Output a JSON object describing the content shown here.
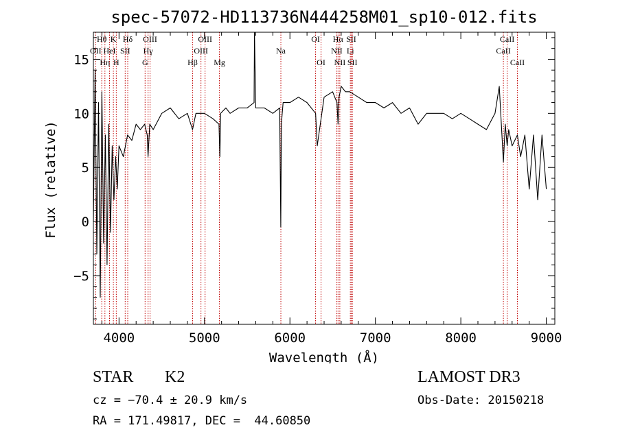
{
  "chart_data": {
    "type": "line",
    "title": "spec-57072-HD113736N444258M01_sp10-012.fits",
    "xlabel": "Wavelength (Å)",
    "ylabel": "Flux (relative)",
    "xlim": [
      3700,
      9100
    ],
    "ylim": [
      -9.5,
      17.5
    ],
    "xticks": [
      4000,
      5000,
      6000,
      7000,
      8000,
      9000
    ],
    "xtick_labels": [
      "4000",
      "5000",
      "6000",
      "7000",
      "8000",
      "9000"
    ],
    "yticks": [
      -5,
      0,
      5,
      10,
      15
    ],
    "ytick_labels": [
      "−5",
      "0",
      "5",
      "10",
      "15"
    ],
    "series": [
      {
        "name": "flux",
        "x": [
          3700,
          3720,
          3740,
          3760,
          3780,
          3800,
          3820,
          3840,
          3860,
          3880,
          3900,
          3920,
          3940,
          3960,
          3980,
          4000,
          4050,
          4100,
          4150,
          4200,
          4250,
          4300,
          4330,
          4340,
          4360,
          4400,
          4500,
          4600,
          4700,
          4800,
          4860,
          4900,
          5000,
          5100,
          5170,
          5180,
          5190,
          5250,
          5300,
          5400,
          5500,
          5580,
          5585,
          5600,
          5700,
          5800,
          5880,
          5893,
          5900,
          5910,
          5920,
          6000,
          6100,
          6200,
          6300,
          6320,
          6400,
          6500,
          6550,
          6563,
          6575,
          6600,
          6650,
          6700,
          6800,
          6900,
          7000,
          7100,
          7200,
          7300,
          7400,
          7500,
          7600,
          7700,
          7800,
          7900,
          8000,
          8100,
          8200,
          8300,
          8400,
          8450,
          8498,
          8520,
          8542,
          8560,
          8600,
          8662,
          8700,
          8750,
          8800,
          8850,
          8900,
          8950,
          9000
        ],
        "y": [
          0,
          14,
          -3,
          11,
          -7,
          12,
          -2,
          8,
          -4,
          9,
          -1,
          7,
          2,
          6,
          3,
          7,
          6,
          8,
          7.5,
          9,
          8.5,
          9,
          8,
          6,
          9,
          8.5,
          10,
          10.5,
          9.5,
          10,
          8.5,
          10,
          10,
          9.5,
          9,
          6,
          10,
          10.5,
          10,
          10.5,
          10.5,
          11,
          17.5,
          10.5,
          10.5,
          10,
          10.5,
          -0.5,
          9,
          10,
          11,
          11,
          11.5,
          11,
          10,
          7,
          11.5,
          12,
          11,
          9,
          11.5,
          12.5,
          12,
          12,
          11.5,
          11,
          11,
          10.5,
          11,
          10,
          10.5,
          9,
          10,
          10,
          10,
          9.5,
          10,
          9.5,
          9,
          8.5,
          10,
          12.5,
          5.5,
          9,
          7,
          8.5,
          7,
          8,
          6,
          8,
          3,
          8,
          2,
          8,
          3
        ]
      }
    ],
    "lines": [
      {
        "label": "Hθ",
        "x": 3798,
        "row": 1
      },
      {
        "label": "OII",
        "x": 3727,
        "row": 2
      },
      {
        "label": "Hη",
        "x": 3835,
        "row": 3
      },
      {
        "label": "K",
        "x": 3934,
        "row": 1
      },
      {
        "label": "HeI",
        "x": 3889,
        "row": 2
      },
      {
        "label": "H",
        "x": 3968,
        "row": 3
      },
      {
        "label": "Hδ",
        "x": 4102,
        "row": 1
      },
      {
        "label": "SII",
        "x": 4072,
        "row": 2
      },
      {
        "label": "OIII",
        "x": 4363,
        "row": 1
      },
      {
        "label": "Hγ",
        "x": 4340,
        "row": 2
      },
      {
        "label": "G",
        "x": 4305,
        "row": 3
      },
      {
        "label": "Hβ",
        "x": 4861,
        "row": 3
      },
      {
        "label": "OIII",
        "x": 5007,
        "row": 1
      },
      {
        "label": "OIII",
        "x": 4959,
        "row": 2
      },
      {
        "label": "Mg",
        "x": 5175,
        "row": 3
      },
      {
        "label": "Na",
        "x": 5894,
        "row": 2
      },
      {
        "label": "OI",
        "x": 6300,
        "row": 1
      },
      {
        "label": "OI",
        "x": 6364,
        "row": 3
      },
      {
        "label": "Hα",
        "x": 6563,
        "row": 1
      },
      {
        "label": "NII",
        "x": 6548,
        "row": 2
      },
      {
        "label": "NII",
        "x": 6584,
        "row": 3
      },
      {
        "label": "SII",
        "x": 6717,
        "row": 1
      },
      {
        "label": "Li",
        "x": 6707,
        "row": 2
      },
      {
        "label": "SII",
        "x": 6731,
        "row": 3
      },
      {
        "label": "CaII",
        "x": 8542,
        "row": 1
      },
      {
        "label": "CaII",
        "x": 8498,
        "row": 2
      },
      {
        "label": "CaII",
        "x": 8662,
        "row": 3
      }
    ]
  },
  "info": {
    "object_type": "STAR",
    "subclass": "K2",
    "survey": "LAMOST DR3",
    "cz": "cz = −70.4 ± 20.9 km/s",
    "obs_date": "Obs-Date: 20150218",
    "coords": "RA = 171.49817, DEC =  44.60850"
  }
}
